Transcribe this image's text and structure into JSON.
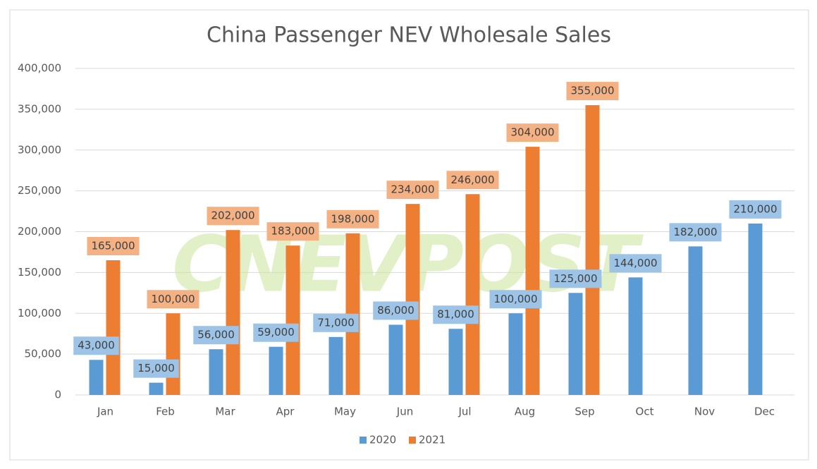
{
  "chart_data": {
    "type": "bar",
    "title": "China Passenger NEV Wholesale Sales",
    "watermark": "CNEVPOST",
    "categories": [
      "Jan",
      "Feb",
      "Mar",
      "Apr",
      "May",
      "Jun",
      "Jul",
      "Aug",
      "Sep",
      "Oct",
      "Nov",
      "Dec"
    ],
    "series": [
      {
        "name": "2020",
        "color": "#5b9bd5",
        "label_color": "#9dc3e6",
        "values": [
          43000,
          15000,
          56000,
          59000,
          71000,
          86000,
          81000,
          100000,
          125000,
          144000,
          182000,
          210000
        ],
        "value_labels": [
          "43,000",
          "15,000",
          "56,000",
          "59,000",
          "71,000",
          "86,000",
          "81,000",
          "100,000",
          "125,000",
          "144,000",
          "182,000",
          "210,000"
        ]
      },
      {
        "name": "2021",
        "color": "#ed7d31",
        "label_color": "#f4b183",
        "values": [
          165000,
          100000,
          202000,
          183000,
          198000,
          234000,
          246000,
          304000,
          355000,
          null,
          null,
          null
        ],
        "value_labels": [
          "165,000",
          "100,000",
          "202,000",
          "183,000",
          "198,000",
          "234,000",
          "246,000",
          "304,000",
          "355,000",
          null,
          null,
          null
        ]
      }
    ],
    "ylim": [
      0,
      400000
    ],
    "yticks": [
      0,
      {
        "value": 50000,
        "label": "50,000"
      },
      {
        "value": 100000,
        "label": "100,000"
      },
      {
        "value": 150000,
        "label": "150,000"
      },
      {
        "value": 200000,
        "label": "200,000"
      },
      {
        "value": 250000,
        "label": "250,000"
      },
      {
        "value": 300000,
        "label": "300,000"
      },
      {
        "value": 350000,
        "label": "350,000"
      },
      {
        "value": 400000,
        "label": "400,000"
      }
    ],
    "grid": true,
    "legend": "bottom"
  }
}
